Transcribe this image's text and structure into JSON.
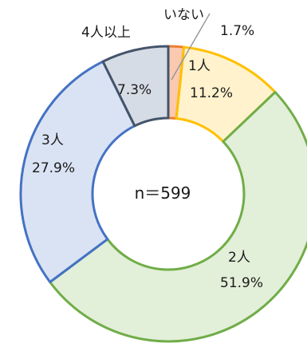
{
  "chart_data": {
    "type": "pie",
    "style": "donut",
    "center_label": "n＝599",
    "categories": [
      "いない",
      "1人",
      "2人",
      "3人",
      "4人以上"
    ],
    "values": [
      1.7,
      11.2,
      51.9,
      27.9,
      7.3
    ],
    "value_labels": [
      "1.7%",
      "11.2%",
      "51.9%",
      "27.9%",
      "7.3%"
    ],
    "colors": {
      "fills": [
        "#f9c9b0",
        "#fff2cc",
        "#e2efd9",
        "#dae3f3",
        "#d6dce5"
      ],
      "borders": [
        "#ed7d31",
        "#ffc000",
        "#70ad47",
        "#4472c4",
        "#44546a"
      ]
    }
  }
}
